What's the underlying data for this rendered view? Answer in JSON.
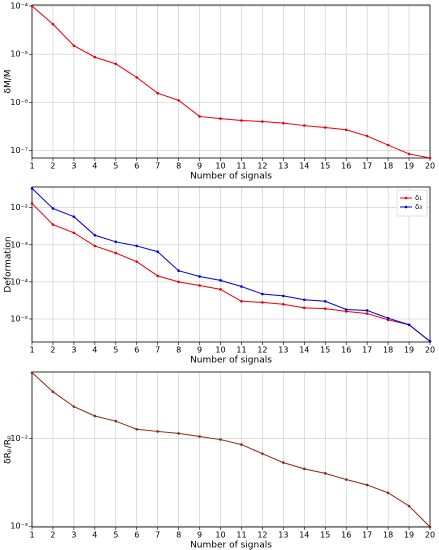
{
  "chart_data": [
    {
      "type": "line",
      "x_label": "Number of signals",
      "y_label": "δM/M",
      "log_y": true,
      "grid": true,
      "x": [
        1,
        2,
        3,
        4,
        5,
        6,
        7,
        8,
        9,
        10,
        11,
        12,
        13,
        14,
        15,
        16,
        17,
        18,
        19,
        20
      ],
      "series": [
        {
          "name": null,
          "color": "#e8000b",
          "values": [
            0.0001,
            4.2e-05,
            1.5e-05,
            8.7e-06,
            6.3e-06,
            3.3e-06,
            1.55e-06,
            1.1e-06,
            5.1e-07,
            4.6e-07,
            4.2e-07,
            4e-07,
            3.7e-07,
            3.3e-07,
            3e-07,
            2.7e-07,
            2e-07,
            1.3e-07,
            8.5e-08,
            7e-08
          ]
        }
      ],
      "xlim": [
        1,
        20
      ],
      "xticks": [
        1,
        2,
        3,
        4,
        5,
        6,
        7,
        8,
        9,
        10,
        11,
        12,
        13,
        14,
        15,
        16,
        17,
        18,
        19,
        20
      ],
      "ylim": [
        7e-08,
        0.000105
      ],
      "yticks": [
        {
          "value": 0.0001,
          "label": "10⁻⁴"
        },
        {
          "value": 1e-05,
          "label": "10⁻⁵"
        },
        {
          "value": 1e-06,
          "label": "10⁻⁶"
        },
        {
          "value": 1e-07,
          "label": "10⁻⁷"
        }
      ]
    },
    {
      "type": "line",
      "x_label": "Number of signals",
      "y_label": "Deformation",
      "log_y": true,
      "grid": true,
      "legend": "upper right",
      "x": [
        1,
        2,
        3,
        4,
        5,
        6,
        7,
        8,
        9,
        10,
        11,
        12,
        13,
        14,
        15,
        16,
        17,
        18,
        19,
        20
      ],
      "series": [
        {
          "name": "δ₁",
          "color": "#e8000b",
          "values": [
            0.013,
            0.0035,
            0.0021,
            0.00093,
            0.0006,
            0.00035,
            0.000145,
            0.0001,
            8e-05,
            6.3e-05,
            3e-05,
            2.8e-05,
            2.5e-05,
            2e-05,
            1.9e-05,
            1.6e-05,
            1.4e-05,
            9.5e-06,
            7e-06,
            2.5e-06
          ]
        },
        {
          "name": "δ₃",
          "color": "#0000e0",
          "values": [
            0.033,
            0.0095,
            0.0057,
            0.0018,
            0.0012,
            0.00093,
            0.00065,
            0.0002,
            0.00014,
            0.00011,
            7.5e-05,
            4.7e-05,
            4.2e-05,
            3.3e-05,
            3e-05,
            1.8e-05,
            1.7e-05,
            1.05e-05,
            7e-06,
            2.5e-06
          ]
        }
      ],
      "xlim": [
        1,
        20
      ],
      "xticks": [
        1,
        2,
        3,
        4,
        5,
        6,
        7,
        8,
        9,
        10,
        11,
        12,
        13,
        14,
        15,
        16,
        17,
        18,
        19,
        20
      ],
      "ylim": [
        2.4e-06,
        0.036
      ],
      "yticks": [
        {
          "value": 0.01,
          "label": "10⁻²"
        },
        {
          "value": 0.001,
          "label": "10⁻³"
        },
        {
          "value": 0.0001,
          "label": "10⁻⁴"
        },
        {
          "value": 1e-05,
          "label": "10⁻⁵"
        }
      ]
    },
    {
      "type": "line",
      "x_label": "Number of signals",
      "y_label": "δRₚ/Rₚ",
      "log_y": true,
      "grid": true,
      "x": [
        1,
        2,
        3,
        4,
        5,
        6,
        7,
        8,
        9,
        10,
        11,
        12,
        13,
        14,
        15,
        16,
        17,
        18,
        19,
        20
      ],
      "series": [
        {
          "name": null,
          "color": "#8b2a10",
          "values": [
            0.056,
            0.034,
            0.023,
            0.018,
            0.0157,
            0.0127,
            0.012,
            0.0114,
            0.0105,
            0.0097,
            0.0085,
            0.0067,
            0.0053,
            0.0045,
            0.004,
            0.0034,
            0.00295,
            0.0024,
            0.0017,
            0.00098
          ]
        }
      ],
      "xlim": [
        1,
        20
      ],
      "xticks": [
        1,
        2,
        3,
        4,
        5,
        6,
        7,
        8,
        9,
        10,
        11,
        12,
        13,
        14,
        15,
        16,
        17,
        18,
        19,
        20
      ],
      "ylim": [
        0.00098,
        0.057
      ],
      "yticks": [
        {
          "value": 0.01,
          "label": "10⁻²"
        },
        {
          "value": 0.001,
          "label": "10⁻³"
        }
      ]
    }
  ]
}
